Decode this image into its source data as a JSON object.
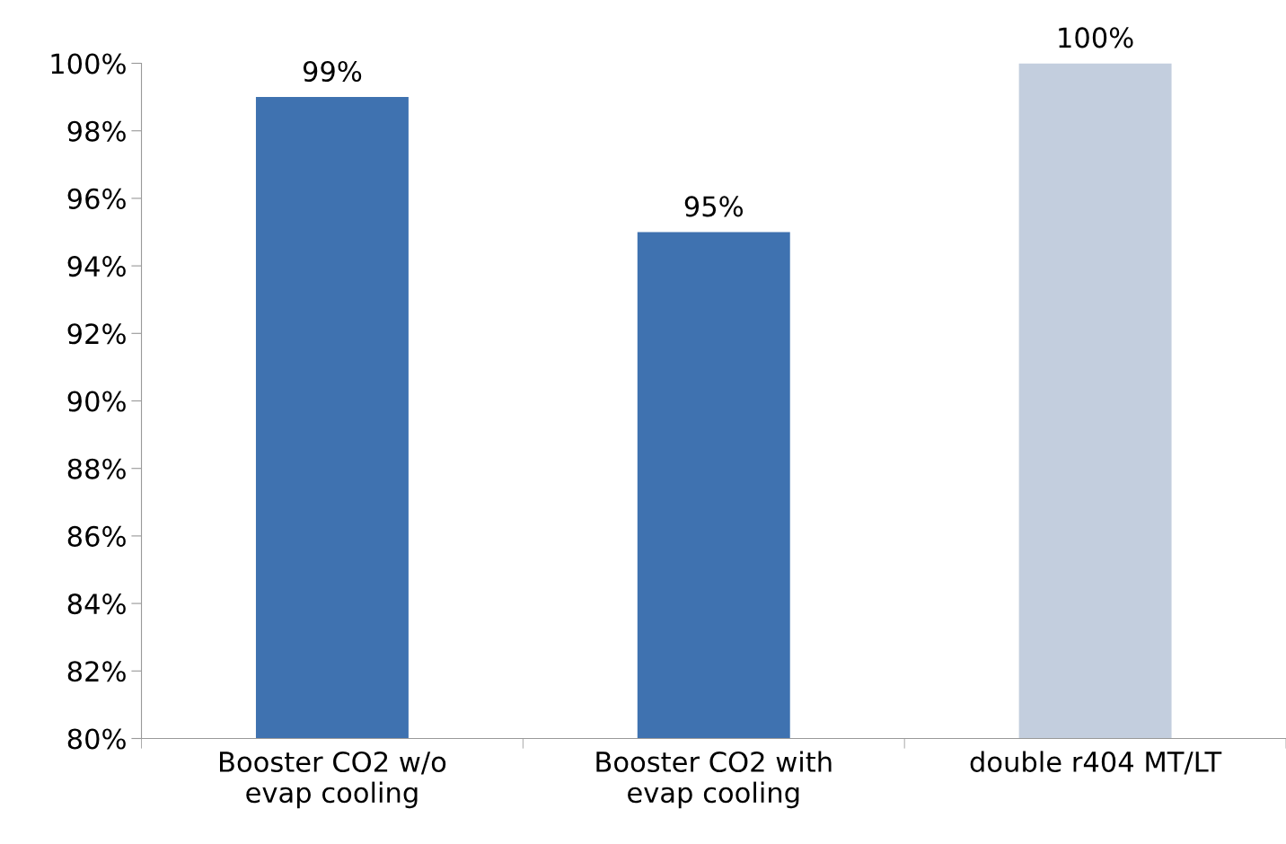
{
  "chart_data": {
    "type": "bar",
    "categories": [
      "Booster CO2 w/o\nevap cooling",
      "Booster CO2 with\nevap cooling",
      "double r404 MT/LT"
    ],
    "values": [
      99,
      95,
      100
    ],
    "colors": [
      "#3f72b0",
      "#3f72b0",
      "#c3cede"
    ],
    "value_labels": [
      "99%",
      "95%",
      "100%"
    ],
    "ylim": [
      80,
      100
    ],
    "yticks": [
      {
        "value": 80,
        "label": "80%"
      },
      {
        "value": 82,
        "label": "82%"
      },
      {
        "value": 84,
        "label": "84%"
      },
      {
        "value": 86,
        "label": "86%"
      },
      {
        "value": 88,
        "label": "88%"
      },
      {
        "value": 90,
        "label": "90%"
      },
      {
        "value": 92,
        "label": "92%"
      },
      {
        "value": 94,
        "label": "94%"
      },
      {
        "value": 96,
        "label": "96%"
      },
      {
        "value": 98,
        "label": "98%"
      },
      {
        "value": 100,
        "label": "100%"
      }
    ],
    "grid": false
  }
}
